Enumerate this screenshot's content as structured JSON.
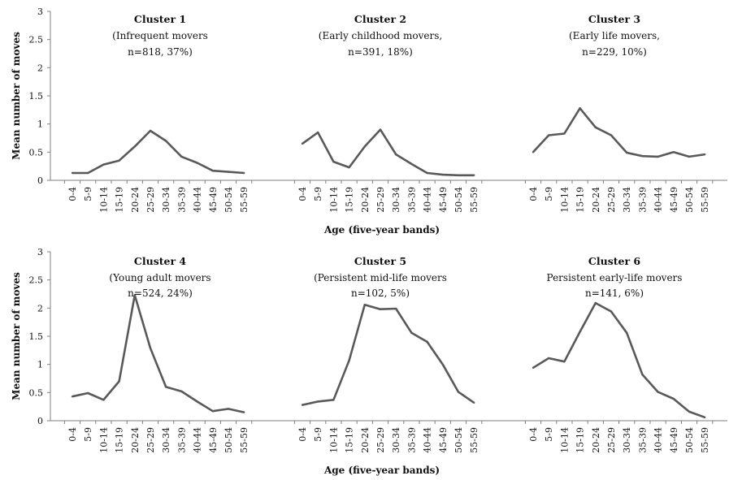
{
  "figure": {
    "y_axis_label": "Mean number of moves",
    "x_axis_label": "Age (five-year bands)",
    "series_color": "#595959",
    "axis_color": "#7f7f7f"
  },
  "chart_data": {
    "type": "line",
    "xlabel": "Age (five-year bands)",
    "ylabel": "Mean number of moves",
    "ylim": [
      0,
      3
    ],
    "yticks": [
      "0",
      "0.5",
      "1",
      "1.5",
      "2",
      "2.5",
      "3"
    ],
    "categories": [
      "0-4",
      "5-9",
      "10-14",
      "15-19",
      "20-24",
      "25-29",
      "30-34",
      "35-39",
      "40-44",
      "45-49",
      "50-54",
      "55-59"
    ],
    "grid": false,
    "panels": [
      {
        "title": "Cluster 1",
        "subtitle_line1": "(Infrequent movers",
        "subtitle_line2": "n=818, 37%)",
        "values": [
          0.13,
          0.13,
          0.28,
          0.35,
          0.6,
          0.88,
          0.7,
          0.42,
          0.31,
          0.17,
          0.15,
          0.13
        ]
      },
      {
        "title": "Cluster 2",
        "subtitle_line1": "(Early childhood movers,",
        "subtitle_line2": "n=391, 18%)",
        "values": [
          0.65,
          0.85,
          0.33,
          0.23,
          0.6,
          0.9,
          0.46,
          0.29,
          0.13,
          0.1,
          0.09,
          0.09
        ]
      },
      {
        "title": "Cluster 3",
        "subtitle_line1": "(Early life movers,",
        "subtitle_line2": "n=229, 10%)",
        "values": [
          0.5,
          0.8,
          0.83,
          1.28,
          0.94,
          0.8,
          0.49,
          0.43,
          0.42,
          0.5,
          0.42,
          0.46
        ]
      },
      {
        "title": "Cluster 4",
        "subtitle_line1": "(Young adult movers",
        "subtitle_line2": "n=524, 24%)",
        "values": [
          0.43,
          0.49,
          0.37,
          0.7,
          2.23,
          1.29,
          0.6,
          0.52,
          0.34,
          0.17,
          0.21,
          0.15
        ]
      },
      {
        "title": "Cluster 5",
        "subtitle_line1": "(Persistent mid-life movers",
        "subtitle_line2": "n=102, 5%)",
        "values": [
          0.28,
          0.34,
          0.37,
          1.07,
          2.06,
          1.98,
          1.99,
          1.56,
          1.4,
          1.0,
          0.51,
          0.32
        ]
      },
      {
        "title": "Cluster 6",
        "subtitle_line1": "Persistent early-life movers",
        "subtitle_line2": "n=141, 6%)",
        "values": [
          0.94,
          1.11,
          1.05,
          1.58,
          2.09,
          1.94,
          1.56,
          0.82,
          0.51,
          0.39,
          0.16,
          0.06
        ]
      }
    ]
  }
}
